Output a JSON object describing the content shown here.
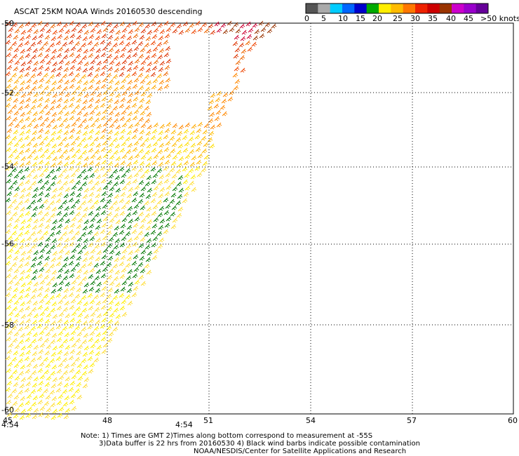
{
  "title": "ASCAT 25KM NOAA Winds 20160530 descending",
  "legend": {
    "colors": [
      "#555555",
      "#aaaaaa",
      "#00ccff",
      "#0066ff",
      "#0000cc",
      "#00aa00",
      "#ffee00",
      "#ffbb00",
      "#ff7700",
      "#ee2200",
      "#cc0000",
      "#993300",
      "#cc00cc",
      "#9900cc",
      "#660099"
    ],
    "tick_labels": [
      "0",
      "5",
      "10",
      "15",
      "20",
      "25",
      "30",
      "35",
      "40",
      "45",
      ">50 knots"
    ]
  },
  "axes": {
    "lat_labels": [
      "-50",
      "-52",
      "-54",
      "-56",
      "-58",
      "-60"
    ],
    "lon_labels": [
      "45",
      "48",
      "51",
      "54",
      "57",
      "60"
    ]
  },
  "time_labels": [
    "4:54",
    "4:54"
  ],
  "time_color": "#660099",
  "notes": [
    "Note: 1) Times are GMT 2)Times along bottom correspond to measurement at -55S",
    "3)Data buffer is 22 hrs from 20160530 4) Black wind barbs indicate possible contamination",
    "NOAA/NESDIS/Center for Satellite Applications and Research"
  ]
}
